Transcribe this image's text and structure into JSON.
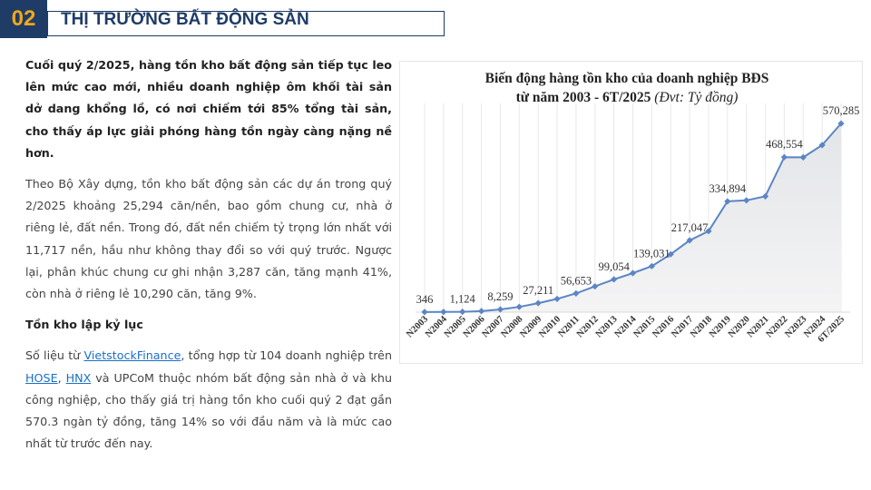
{
  "header": {
    "section_number": "02",
    "section_title": "THỊ TRƯỜNG BẤT ĐỘNG SẢN"
  },
  "article": {
    "lead": "Cuối quý 2/2025, hàng tồn kho bất động sản tiếp tục leo lên mức cao mới, nhiều doanh nghiệp ôm khối tài sản dở dang khổng lồ, có nơi chiếm tới 85% tổng tài sản, cho thấy áp lực giải phóng hàng tồn ngày càng nặng nề hơn.",
    "paragraph1": "Theo Bộ Xây dựng, tồn kho bất động sản các dự án trong quý 2/2025 khoảng 25,294 căn/nền, bao gồm chung cư, nhà ở riêng lẻ, đất nền. Trong đó, đất nền chiếm tỷ trọng lớn nhất với 11,717 nền, hầu như không thay đổi so với quý trước. Ngược lại, phân khúc chung cư ghi nhận 3,287 căn, tăng mạnh 41%, còn nhà ở riêng lẻ 10,290 căn, tăng 9%.",
    "subheading": "Tồn kho lập kỷ lục",
    "p2_part1": "Số liệu từ ",
    "link_vietstock": "VietstockFinance",
    "p2_part2": ", tổng hợp từ 104 doanh nghiệp trên ",
    "link_hose": "HOSE",
    "p2_sep": ", ",
    "link_hnx": "HNX",
    "p2_part3": " và UPCoM thuộc nhóm bất động sản nhà ở và khu công nghiệp, cho thấy giá trị hàng tồn kho cuối quý 2 đạt gần 570.3 ngàn tỷ đồng, tăng 14% so với đầu năm và là mức cao nhất từ trước đến nay."
  },
  "chart_data": {
    "type": "area",
    "title_line1": "Biến động hàng tồn kho của doanh nghiệp BĐS",
    "title_line2": "từ năm 2003 - 6T/2025",
    "title_unit": "(Đvt: Tỷ đồng)",
    "categories": [
      "N2003",
      "N2004",
      "N2005",
      "N2006",
      "N2007",
      "N2008",
      "N2009",
      "N2010",
      "N2011",
      "N2012",
      "N2013",
      "N2014",
      "N2015",
      "N2016",
      "N2017",
      "N2018",
      "N2019",
      "N2020",
      "N2021",
      "N2022",
      "N2023",
      "N2024",
      "6T/2025"
    ],
    "values": [
      346,
      600,
      1124,
      3000,
      8259,
      16000,
      27211,
      40000,
      56653,
      78000,
      99054,
      118000,
      139031,
      175000,
      217047,
      245000,
      334894,
      338000,
      350000,
      468554,
      468000,
      505000,
      570285
    ],
    "labeled_indices": [
      0,
      2,
      4,
      6,
      8,
      10,
      12,
      14,
      16,
      19,
      22
    ],
    "ylim": [
      0,
      620000
    ],
    "grid": "vertical",
    "line_color": "#5b86c4",
    "fill_color": "#d9dadd"
  }
}
